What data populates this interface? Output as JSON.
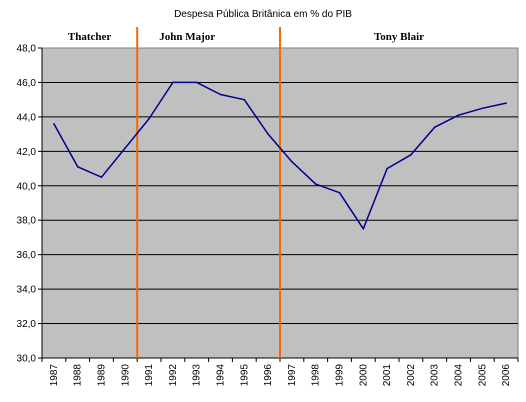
{
  "chart_data": {
    "type": "line",
    "title": "Despesa Pública Britânica em % do PIB",
    "x": [
      "1987",
      "1988",
      "1989",
      "1990",
      "1991",
      "1992",
      "1993",
      "1994",
      "1995",
      "1996",
      "1997",
      "1998",
      "1999",
      "2000",
      "2001",
      "2002",
      "2003",
      "2004",
      "2005",
      "2006"
    ],
    "series": [
      {
        "values": [
          43.6,
          41.1,
          40.5,
          42.2,
          43.9,
          46.0,
          46.0,
          45.3,
          45.0,
          43.0,
          41.4,
          40.1,
          39.6,
          37.5,
          41.0,
          41.8,
          43.4,
          44.1,
          44.5,
          44.8
        ],
        "color": "#00008b"
      }
    ],
    "ylim": [
      30,
      48
    ],
    "yticks": [
      "30,0",
      "32,0",
      "34,0",
      "36,0",
      "38,0",
      "40,0",
      "42,0",
      "44,0",
      "46,0",
      "48,0"
    ],
    "grid": true,
    "plot_background": "#c0c0c0",
    "divider_color": "#ff6600",
    "dividers": [
      3.5,
      9.5
    ],
    "eras": [
      {
        "label": "Thatcher",
        "from": 0,
        "to": 3.5
      },
      {
        "label": "John Major",
        "from": 3.5,
        "to": 9.5
      },
      {
        "label": "Tony Blair",
        "from": 9.5,
        "to": 19.5
      }
    ]
  }
}
